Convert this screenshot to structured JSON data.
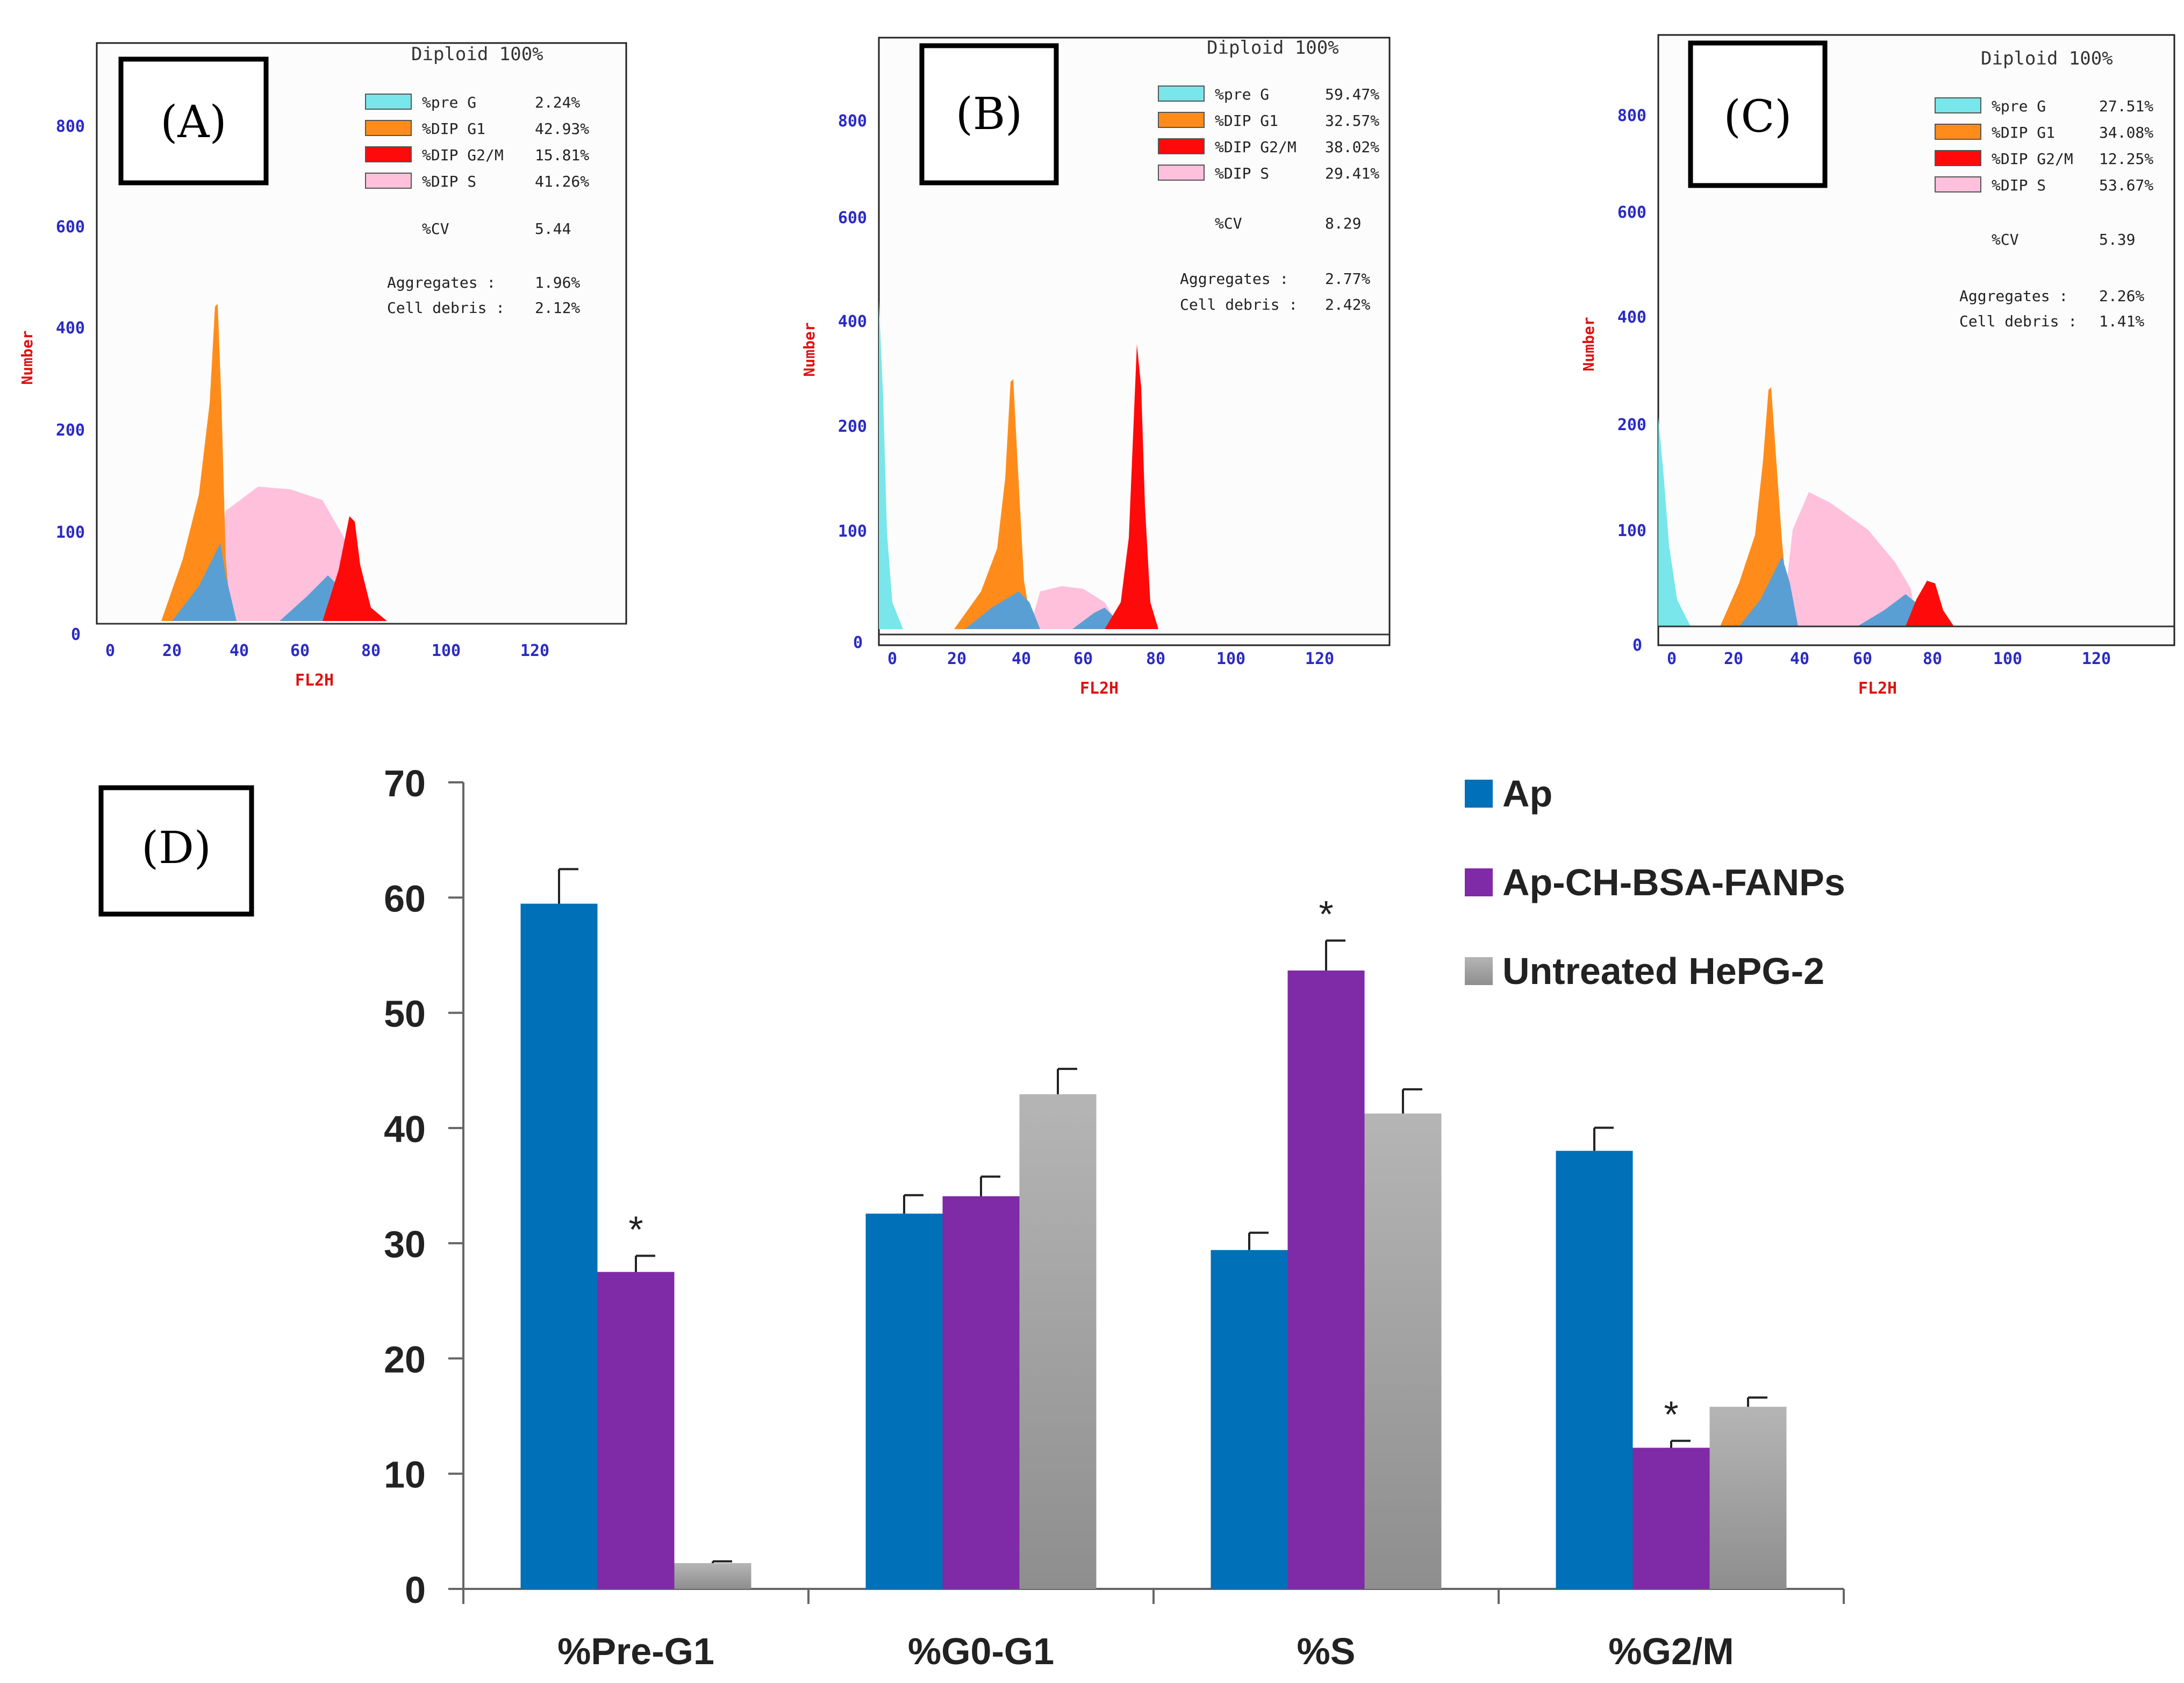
{
  "colors": {
    "preG": "#78e6ea",
    "g1": "#ff8c1a",
    "g2m": "#ff0a0a",
    "s": "#ffc0dc",
    "overlap": "#5a9fd4",
    "ap": "#0070b8",
    "ap_fanps": "#7f2aa6",
    "untreated": "#a8a8a8",
    "hist_tick": "#2a2ac6",
    "hist_axis_label": "#e01010"
  },
  "histograms": [
    {
      "panel_label": "(A)",
      "header": "Diploid 100%",
      "legend": [
        {
          "label": "%pre G",
          "value": "2.24%",
          "color_key": "preG"
        },
        {
          "label": "%DIP G1",
          "value": "42.93%",
          "color_key": "g1"
        },
        {
          "label": "%DIP G2/M",
          "value": "15.81%",
          "color_key": "g2m"
        },
        {
          "label": "%DIP S",
          "value": "41.26%",
          "color_key": "s"
        }
      ],
      "cv": {
        "label": "%CV",
        "value": "5.44"
      },
      "aggregates": {
        "label": "Aggregates :",
        "value": "1.96%"
      },
      "debris": {
        "label": "Cell debris :",
        "value": "2.12%"
      },
      "y_ticks": [
        "0",
        "100",
        "200",
        "400",
        "600",
        "800"
      ],
      "x_ticks": [
        "0",
        "20",
        "40",
        "60",
        "80",
        "100",
        "120"
      ],
      "y_label": "Number",
      "x_label": "FL2H"
    },
    {
      "panel_label": "(B)",
      "header": "Diploid 100%",
      "legend": [
        {
          "label": "%pre G",
          "value": "59.47%",
          "color_key": "preG"
        },
        {
          "label": "%DIP G1",
          "value": "32.57%",
          "color_key": "g1"
        },
        {
          "label": "%DIP G2/M",
          "value": "38.02%",
          "color_key": "g2m"
        },
        {
          "label": "%DIP S",
          "value": "29.41%",
          "color_key": "s"
        }
      ],
      "cv": {
        "label": "%CV",
        "value": "8.29"
      },
      "aggregates": {
        "label": "Aggregates :",
        "value": "2.77%"
      },
      "debris": {
        "label": "Cell debris :",
        "value": "2.42%"
      },
      "y_ticks": [
        "0",
        "100",
        "200",
        "400",
        "600",
        "800"
      ],
      "x_ticks": [
        "0",
        "20",
        "40",
        "60",
        "80",
        "100",
        "120"
      ],
      "y_label": "Number",
      "x_label": "FL2H"
    },
    {
      "panel_label": "(C)",
      "header": "Diploid 100%",
      "legend": [
        {
          "label": "%pre G",
          "value": "27.51%",
          "color_key": "preG"
        },
        {
          "label": "%DIP G1",
          "value": "34.08%",
          "color_key": "g1"
        },
        {
          "label": "%DIP G2/M",
          "value": "12.25%",
          "color_key": "g2m"
        },
        {
          "label": "%DIP S",
          "value": "53.67%",
          "color_key": "s"
        }
      ],
      "cv": {
        "label": "%CV",
        "value": "5.39"
      },
      "aggregates": {
        "label": "Aggregates :",
        "value": "2.26%"
      },
      "debris": {
        "label": "Cell debris :",
        "value": "1.41%"
      },
      "y_ticks": [
        "0",
        "100",
        "200",
        "400",
        "600",
        "800"
      ],
      "x_ticks": [
        "0",
        "20",
        "40",
        "60",
        "80",
        "100",
        "120"
      ],
      "y_label": "Number",
      "x_label": "FL2H"
    }
  ],
  "chart_data": {
    "type": "bar",
    "panel_label": "(D)",
    "title": "",
    "xlabel": "",
    "ylabel": "",
    "categories": [
      "%Pre-G1",
      "%G0-G1",
      "%S",
      "%G2/M"
    ],
    "ylim": [
      0,
      70
    ],
    "y_ticks": [
      "0",
      "10",
      "20",
      "30",
      "40",
      "50",
      "60",
      "70"
    ],
    "legend_position": "top-right",
    "series": [
      {
        "name": "Ap",
        "color_key": "ap",
        "values": [
          59.47,
          32.57,
          29.41,
          38.02
        ],
        "errors": [
          3.0,
          1.6,
          1.5,
          2.0
        ]
      },
      {
        "name": "Ap-CH-BSA-FANPs",
        "color_key": "ap_fanps",
        "values": [
          27.51,
          34.08,
          53.67,
          12.25
        ],
        "errors": [
          1.4,
          1.7,
          2.6,
          0.6
        ]
      },
      {
        "name": "Untreated HePG-2",
        "color_key": "untreated",
        "values": [
          2.24,
          42.93,
          41.26,
          15.81
        ],
        "errors": [
          0.15,
          2.2,
          2.1,
          0.8
        ]
      }
    ],
    "significance": [
      {
        "series": "Ap-CH-BSA-FANPs",
        "category": "%Pre-G1",
        "text": "*"
      },
      {
        "series": "Ap-CH-BSA-FANPs",
        "category": "%S",
        "text": "*"
      },
      {
        "series": "Ap-CH-BSA-FANPs",
        "category": "%G2/M",
        "text": "*"
      }
    ]
  }
}
